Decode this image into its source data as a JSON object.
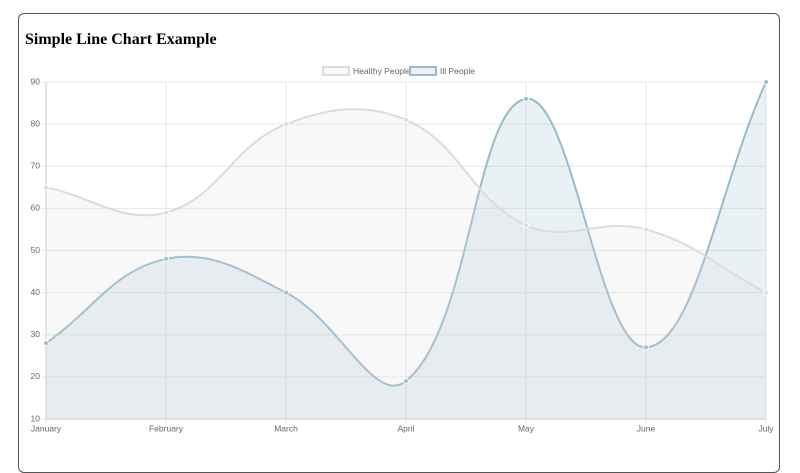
{
  "chart_data": {
    "type": "line",
    "title": "Simple Line Chart Example",
    "categories": [
      "January",
      "February",
      "March",
      "April",
      "May",
      "June",
      "July"
    ],
    "series": [
      {
        "name": "Healthy People",
        "color": "#dcdcdc",
        "values": [
          65,
          59,
          80,
          81,
          56,
          55,
          40
        ]
      },
      {
        "name": "Ill People",
        "color": "#97bbcd",
        "values": [
          28,
          48,
          40,
          19,
          86,
          27,
          90
        ]
      }
    ],
    "ylim": [
      10,
      90
    ],
    "yticks": [
      10,
      20,
      30,
      40,
      50,
      60,
      70,
      80,
      90
    ],
    "grid": true,
    "legend": "top"
  }
}
